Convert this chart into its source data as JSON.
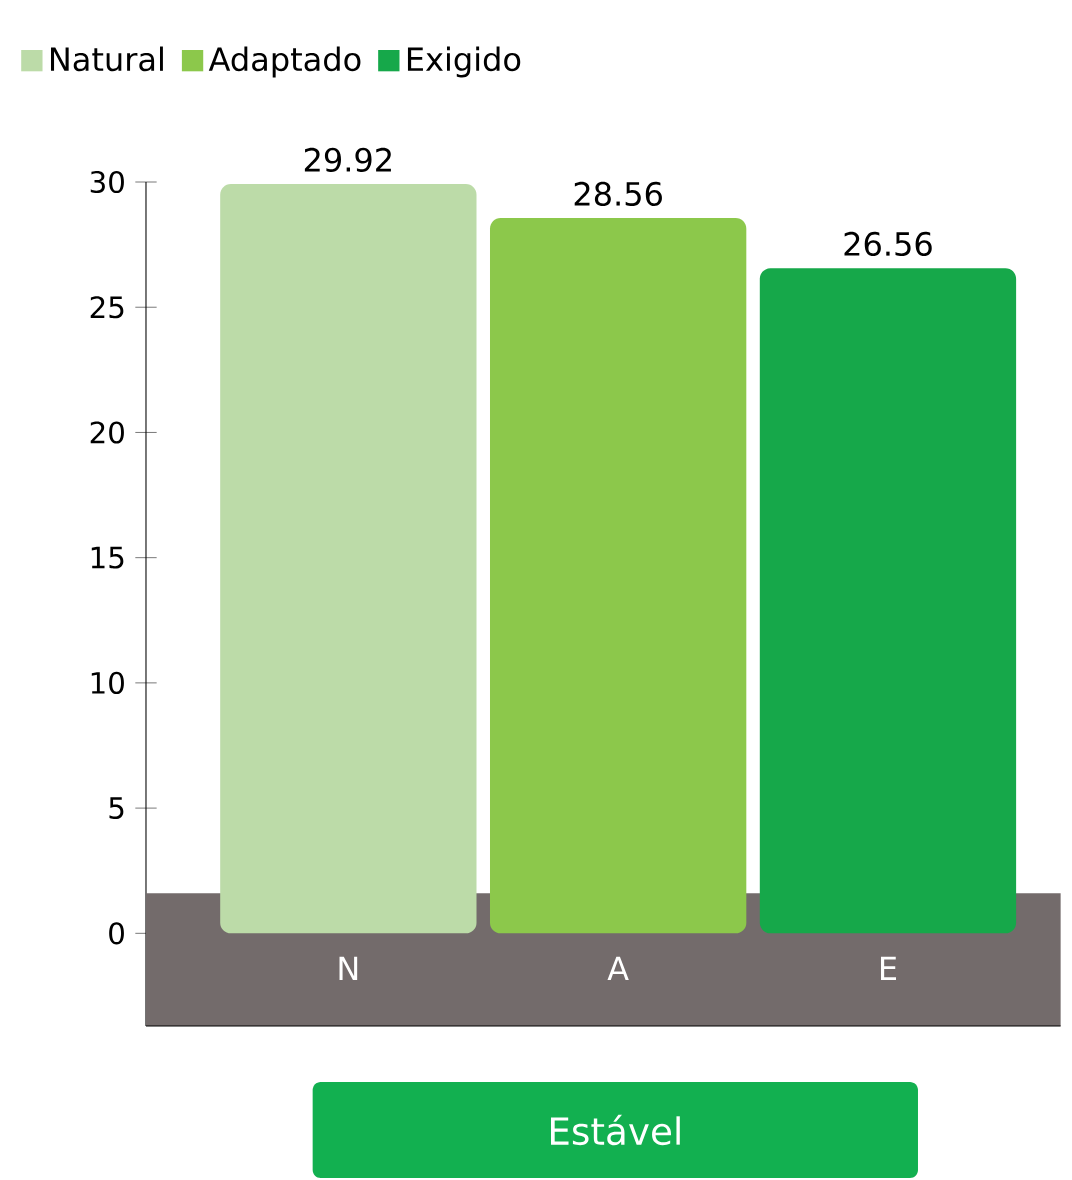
{
  "chart_data": {
    "type": "bar",
    "categories": [
      "N",
      "A",
      "E"
    ],
    "series": [
      {
        "name": "Natural",
        "color": "#bcdba8",
        "values": [
          29.92,
          null,
          null
        ]
      },
      {
        "name": "Adaptado",
        "color": "#8cc84b",
        "values": [
          null,
          28.56,
          null
        ]
      },
      {
        "name": "Exigido",
        "color": "#16a84a",
        "values": [
          null,
          null,
          26.56
        ]
      }
    ],
    "ylim": [
      -3.7,
      30
    ],
    "yticks": [
      0,
      5,
      10,
      15,
      20,
      25,
      30
    ],
    "grid": false,
    "legend": "top",
    "data_labels": true,
    "bands": [
      {
        "axis": "y",
        "from": -3.7,
        "to": 1.6,
        "color": "#736b6b"
      }
    ],
    "annotations": [
      "Estável"
    ]
  }
}
